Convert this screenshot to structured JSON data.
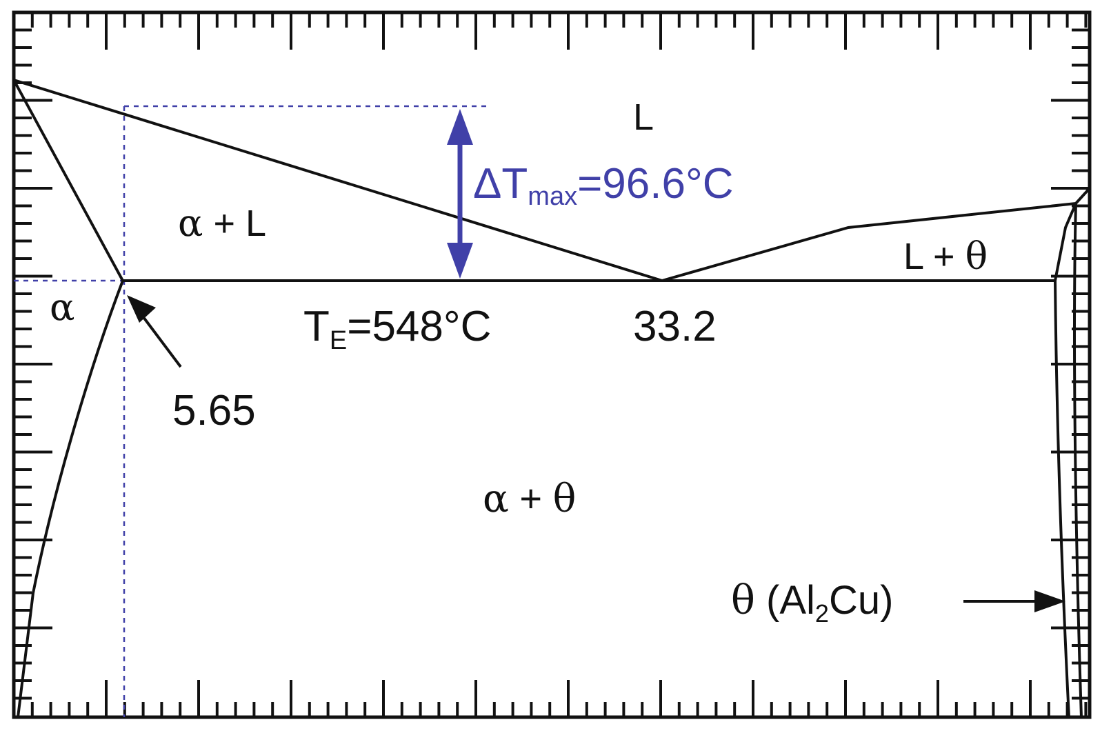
{
  "diagram": {
    "colors": {
      "line": "#111111",
      "guide": "#4040a8",
      "background": "#ffffff"
    },
    "regions": {
      "liquid": "L",
      "alpha_liquid_alpha": "α",
      "alpha_liquid_rest": " + L",
      "alpha": "α",
      "liquid_theta_l": "L + ",
      "liquid_theta_theta": "θ",
      "alpha_theta_alpha": "α",
      "alpha_theta_plus": " + ",
      "alpha_theta_theta": "θ"
    },
    "annotations": {
      "delta_t_prefix": "ΔT",
      "delta_t_sub": "max",
      "delta_t_value": "=96.6°C",
      "eutectic_t": "T",
      "eutectic_t_sub": "E",
      "eutectic_t_value": "=548°C",
      "eutectic_composition": "33.2",
      "solubility_limit": "5.65",
      "theta_symbol": "θ",
      "theta_phase_open": " (Al",
      "theta_phase_sub": "2",
      "theta_phase_close": "Cu)"
    }
  }
}
